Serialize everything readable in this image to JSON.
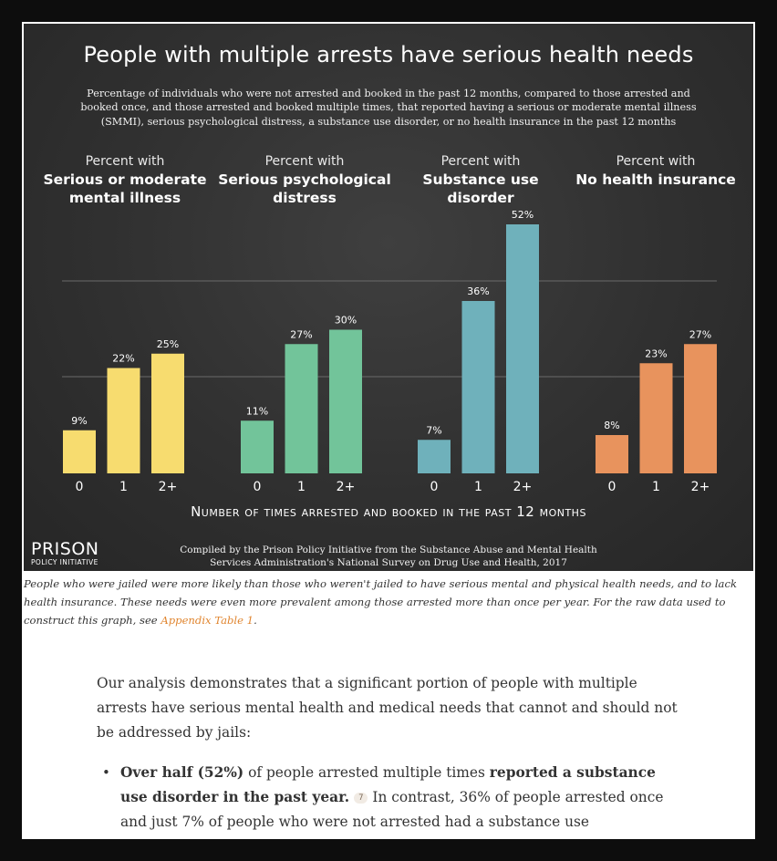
{
  "chart_data": {
    "type": "bar",
    "title": "People with multiple arrests have serious health needs",
    "subtitle": "Percentage of individuals who were not arrested and booked in the past 12 months, compared to those arrested and booked once, and those arrested and booked multiple times, that reported having a serious or moderate mental illness (SMMI), serious psychological distress, a substance use disorder, or no health insurance in the past 12 months",
    "xlabel": "Number of times arrested and booked in the past 12 months",
    "ylabel": "",
    "ylim": [
      0,
      52
    ],
    "grid": true,
    "categories": [
      "0",
      "1",
      "2+"
    ],
    "panels": [
      {
        "pre": "Percent with",
        "label": "Serious or moderate\nmental illness",
        "values": [
          9,
          22,
          25
        ],
        "labels": [
          "9%",
          "22%",
          "25%"
        ],
        "color": "#f7dc6f"
      },
      {
        "pre": "Percent with",
        "label": "Serious psychological\ndistress",
        "values": [
          11,
          27,
          30
        ],
        "labels": [
          "11%",
          "27%",
          "30%"
        ],
        "color": "#72c49a"
      },
      {
        "pre": "Percent with",
        "label": "Substance use\ndisorder",
        "values": [
          7,
          36,
          52
        ],
        "labels": [
          "7%",
          "36%",
          "52%"
        ],
        "color": "#6fb1bb"
      },
      {
        "pre": "Percent with",
        "label": "No health insurance",
        "values": [
          8,
          23,
          27
        ],
        "labels": [
          "8%",
          "23%",
          "27%"
        ],
        "color": "#e8935d"
      }
    ]
  },
  "logo": {
    "main": "PRISON",
    "sub": "POLICY INITIATIVE"
  },
  "credit": "Compiled by the Prison Policy Initiative from the Substance Abuse and Mental Health Services Administration's National Survey on Drug Use and Health, 2017",
  "caption": {
    "text": "People who were jailed were more likely than those who weren't jailed to have serious mental and physical health needs, and to lack health insurance. These needs were even more prevalent among those arrested more than once per year. For the raw data used to construct this graph, see ",
    "link": "Appendix Table 1",
    "end": "."
  },
  "article": {
    "intro": "Our analysis demonstrates that a significant portion of people with multiple arrests have serious mental health and medical needs that cannot and should not be addressed by jails:",
    "bullet": {
      "bold1": "Over half (52%)",
      "text1": " of people arrested multiple times ",
      "bold2": "reported a substance use disorder in the past year.",
      "footnote": "7",
      "text2": " In contrast, 36% of people arrested once and just 7% of people who were not arrested had a substance use"
    }
  }
}
